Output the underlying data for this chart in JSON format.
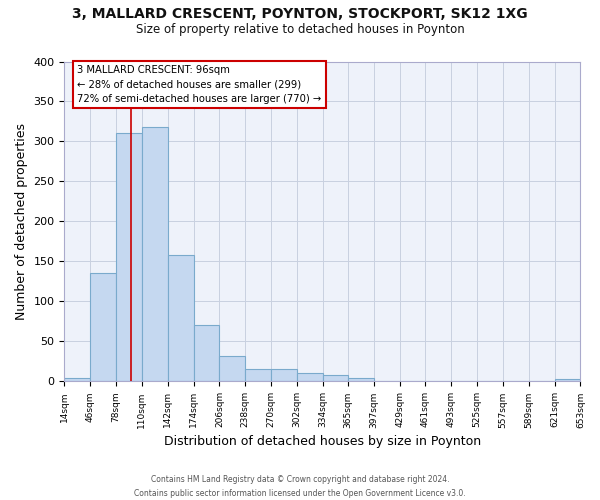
{
  "title": "3, MALLARD CRESCENT, POYNTON, STOCKPORT, SK12 1XG",
  "subtitle": "Size of property relative to detached houses in Poynton",
  "xlabel": "Distribution of detached houses by size in Poynton",
  "ylabel": "Number of detached properties",
  "bar_edges": [
    14,
    46,
    78,
    110,
    142,
    174,
    206,
    238,
    270,
    302,
    334,
    365,
    397,
    429,
    461,
    493,
    525,
    557,
    589,
    621,
    653
  ],
  "bar_heights": [
    4,
    136,
    311,
    318,
    158,
    71,
    32,
    16,
    16,
    11,
    8,
    4,
    0,
    0,
    0,
    0,
    0,
    0,
    0,
    3
  ],
  "bar_color": "#c5d8f0",
  "bar_edge_color": "#7aaacc",
  "property_line_x": 96,
  "property_line_color": "#cc0000",
  "annotation_box_color": "#ffffff",
  "annotation_box_edge_color": "#cc0000",
  "annotation_text_line1": "3 MALLARD CRESCENT: 96sqm",
  "annotation_text_line2": "← 28% of detached houses are smaller (299)",
  "annotation_text_line3": "72% of semi-detached houses are larger (770) →",
  "xlim": [
    14,
    653
  ],
  "ylim": [
    0,
    400
  ],
  "yticks": [
    0,
    50,
    100,
    150,
    200,
    250,
    300,
    350,
    400
  ],
  "xtick_labels": [
    "14sqm",
    "46sqm",
    "78sqm",
    "110sqm",
    "142sqm",
    "174sqm",
    "206sqm",
    "238sqm",
    "270sqm",
    "302sqm",
    "334sqm",
    "365sqm",
    "397sqm",
    "429sqm",
    "461sqm",
    "493sqm",
    "525sqm",
    "557sqm",
    "589sqm",
    "621sqm",
    "653sqm"
  ],
  "xtick_positions": [
    14,
    46,
    78,
    110,
    142,
    174,
    206,
    238,
    270,
    302,
    334,
    365,
    397,
    429,
    461,
    493,
    525,
    557,
    589,
    621,
    653
  ],
  "grid_color": "#c8d0e0",
  "background_color": "#ffffff",
  "plot_bg_color": "#eef2fa",
  "footer_line1": "Contains HM Land Registry data © Crown copyright and database right 2024.",
  "footer_line2": "Contains public sector information licensed under the Open Government Licence v3.0."
}
